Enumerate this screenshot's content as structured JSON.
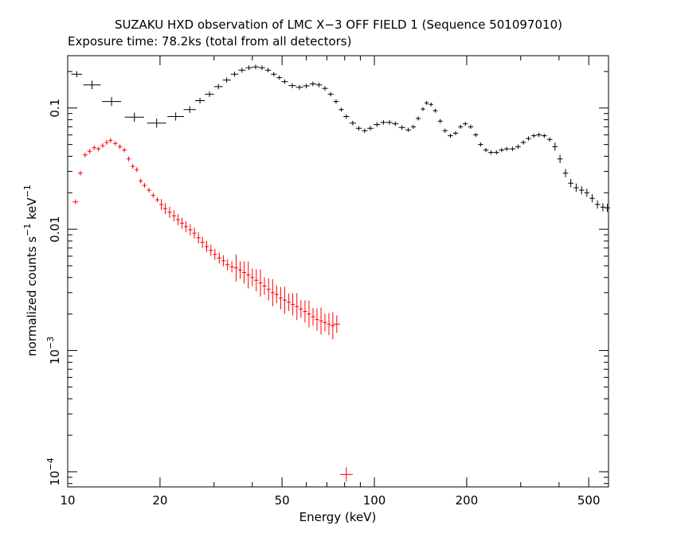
{
  "header": {
    "title": "SUZAKU HXD observation of LMC X−3 OFF FIELD 1 (Sequence 501097010)",
    "subtitle": "Exposure time: 78.2ks (total from all detectors)"
  },
  "chart_data": {
    "type": "scatter",
    "xlabel": "Energy (keV)",
    "ylabel_parts": [
      "normalized counts s",
      "−1",
      " keV",
      "−1"
    ],
    "xscale": "log",
    "yscale": "log",
    "xlim": [
      10,
      580
    ],
    "ylim": [
      7.5e-05,
      0.27
    ],
    "x_ticks": [
      {
        "value": 10,
        "label": "10"
      },
      {
        "value": 20,
        "label": "20"
      },
      {
        "value": 50,
        "label": "50"
      },
      {
        "value": 100,
        "label": "100"
      },
      {
        "value": 200,
        "label": "200"
      },
      {
        "value": 500,
        "label": "500"
      }
    ],
    "y_ticks": [
      {
        "value": 0.0001,
        "base": "10",
        "exp": "−4"
      },
      {
        "value": 0.001,
        "base": "10",
        "exp": "−3"
      },
      {
        "value": 0.01,
        "label": "0.01"
      },
      {
        "value": 0.1,
        "label": "0.1"
      }
    ],
    "series": [
      {
        "color": "#000000",
        "points": [
          [
            10.7,
            0.19
          ],
          [
            12.0,
            0.155
          ],
          [
            13.9,
            0.113
          ],
          [
            16.5,
            0.084
          ],
          [
            19.5,
            0.075
          ],
          [
            22.5,
            0.085
          ],
          [
            25,
            0.097
          ],
          [
            27,
            0.115
          ],
          [
            29,
            0.13
          ],
          [
            31,
            0.15
          ],
          [
            33,
            0.17
          ],
          [
            35,
            0.19
          ],
          [
            37,
            0.205
          ],
          [
            39,
            0.215
          ],
          [
            41,
            0.218
          ],
          [
            43,
            0.215
          ],
          [
            45,
            0.205
          ],
          [
            47,
            0.19
          ],
          [
            49,
            0.178
          ],
          [
            51,
            0.165
          ],
          [
            54,
            0.153
          ],
          [
            57,
            0.148
          ],
          [
            60,
            0.152
          ],
          [
            63,
            0.158
          ],
          [
            66,
            0.155
          ],
          [
            69,
            0.145
          ],
          [
            72,
            0.13
          ],
          [
            75,
            0.113
          ],
          [
            78,
            0.097
          ],
          [
            81,
            0.085
          ],
          [
            85,
            0.075
          ],
          [
            89,
            0.068
          ],
          [
            93,
            0.065
          ],
          [
            97,
            0.068
          ],
          [
            102,
            0.073
          ],
          [
            107,
            0.076
          ],
          [
            112,
            0.076
          ],
          [
            117,
            0.074
          ],
          [
            123,
            0.069
          ],
          [
            129,
            0.066
          ],
          [
            134,
            0.07
          ],
          [
            139,
            0.082
          ],
          [
            144,
            0.098
          ],
          [
            148,
            0.11
          ],
          [
            153,
            0.107
          ],
          [
            158,
            0.095
          ],
          [
            164,
            0.078
          ],
          [
            170,
            0.065
          ],
          [
            177,
            0.059
          ],
          [
            184,
            0.062
          ],
          [
            191,
            0.07
          ],
          [
            198,
            0.074
          ],
          [
            206,
            0.07
          ],
          [
            214,
            0.06
          ],
          [
            222,
            0.05
          ],
          [
            231,
            0.045
          ],
          [
            240,
            0.043
          ],
          [
            250,
            0.043
          ],
          [
            260,
            0.045
          ],
          [
            270,
            0.046
          ],
          [
            282,
            0.046
          ],
          [
            294,
            0.048
          ],
          [
            306,
            0.052
          ],
          [
            318,
            0.056
          ],
          [
            331,
            0.059
          ],
          [
            344,
            0.06
          ],
          [
            358,
            0.059
          ],
          [
            373,
            0.055
          ],
          [
            388,
            0.048
          ],
          [
            403,
            0.038
          ],
          [
            420,
            0.029
          ],
          [
            437,
            0.024
          ],
          [
            455,
            0.022
          ],
          [
            474,
            0.021
          ],
          [
            493,
            0.02
          ],
          [
            513,
            0.018
          ],
          [
            534,
            0.016
          ],
          [
            556,
            0.0152
          ],
          [
            575,
            0.015
          ]
        ]
      },
      {
        "color": "#ff0000",
        "points": [
          [
            10.6,
            0.0168
          ],
          [
            11.0,
            0.029
          ],
          [
            11.4,
            0.041
          ],
          [
            11.8,
            0.044
          ],
          [
            12.2,
            0.047
          ],
          [
            12.6,
            0.046
          ],
          [
            13.0,
            0.049
          ],
          [
            13.4,
            0.052
          ],
          [
            13.8,
            0.054
          ],
          [
            14.3,
            0.051
          ],
          [
            14.8,
            0.048
          ],
          [
            15.3,
            0.045
          ],
          [
            15.8,
            0.038
          ],
          [
            16.3,
            0.033
          ],
          [
            16.8,
            0.031
          ],
          [
            17.3,
            0.025
          ],
          [
            17.8,
            0.023
          ],
          [
            18.4,
            0.021
          ],
          [
            19.0,
            0.019
          ],
          [
            19.6,
            0.0175
          ],
          [
            20.2,
            0.016
          ],
          [
            20.8,
            0.0148
          ],
          [
            21.5,
            0.0138
          ],
          [
            22.2,
            0.0129
          ],
          [
            22.9,
            0.012
          ],
          [
            23.6,
            0.0112
          ],
          [
            24.3,
            0.0105
          ],
          [
            25.1,
            0.0099
          ],
          [
            25.9,
            0.0093
          ],
          [
            26.7,
            0.0085
          ],
          [
            27.5,
            0.0078
          ],
          [
            28.4,
            0.0072
          ],
          [
            29.3,
            0.0067
          ],
          [
            30.2,
            0.0062
          ],
          [
            31.2,
            0.0058
          ],
          [
            32.2,
            0.0055
          ],
          [
            33.2,
            0.0051
          ],
          [
            34.3,
            0.0049
          ],
          [
            35.4,
            0.0048
          ],
          [
            36.5,
            0.0046
          ],
          [
            37.6,
            0.0044
          ],
          [
            38.8,
            0.0042
          ],
          [
            40.0,
            0.004
          ],
          [
            41.2,
            0.0038
          ],
          [
            42.5,
            0.0036
          ],
          [
            43.8,
            0.0034
          ],
          [
            45.2,
            0.0032
          ],
          [
            46.6,
            0.003
          ],
          [
            48.0,
            0.0029
          ],
          [
            49.5,
            0.0027
          ],
          [
            51.0,
            0.0026
          ],
          [
            52.6,
            0.0025
          ],
          [
            54.2,
            0.0024
          ],
          [
            55.9,
            0.0023
          ],
          [
            57.6,
            0.0022
          ],
          [
            59.4,
            0.0021
          ],
          [
            61.2,
            0.002
          ],
          [
            63.1,
            0.0019
          ],
          [
            65.0,
            0.0018
          ],
          [
            67.0,
            0.00175
          ],
          [
            69.0,
            0.0017
          ],
          [
            71.1,
            0.00165
          ],
          [
            73.2,
            0.0016
          ],
          [
            75.4,
            0.00165
          ],
          [
            81.0,
            9.5e-05
          ]
        ]
      }
    ]
  }
}
